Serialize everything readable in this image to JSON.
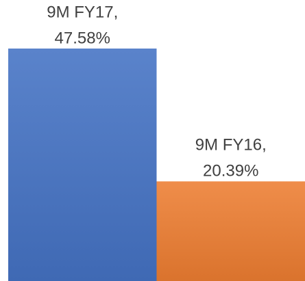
{
  "chart_data": {
    "type": "bar",
    "categories": [
      "9M FY17,",
      "9M FY16,"
    ],
    "values": [
      47.58,
      20.39
    ],
    "value_labels": [
      "47.58%",
      "20.39%"
    ],
    "colors": [
      "#4472c4",
      "#ed7d31"
    ]
  }
}
